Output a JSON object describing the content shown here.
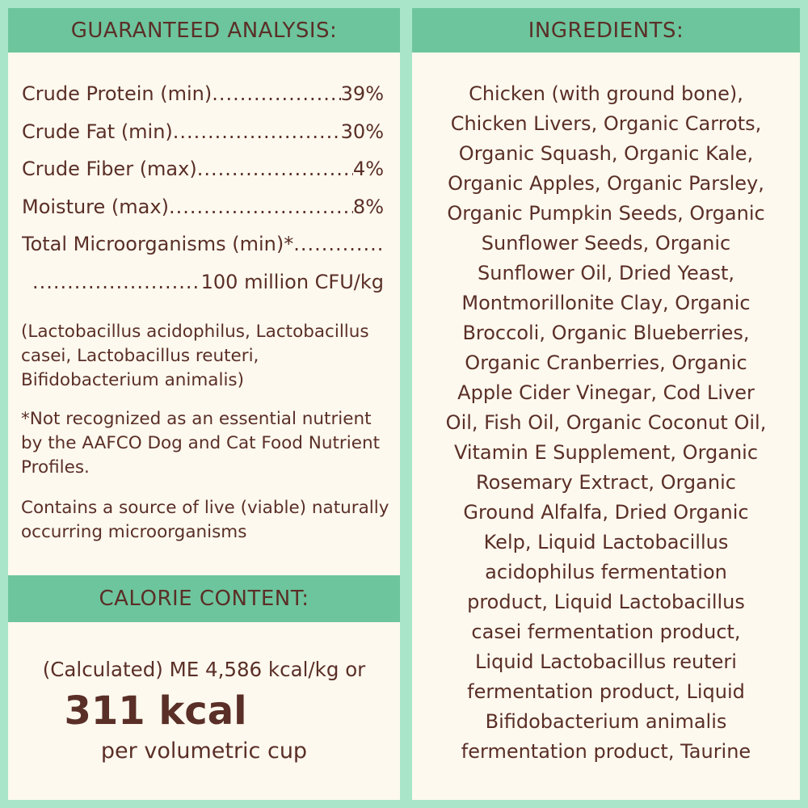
{
  "analysis": {
    "title": "GUARANTEED ANALYSIS:",
    "rows": [
      {
        "label": "Crude Protein (min)",
        "value": "39%"
      },
      {
        "label": "Crude Fat (min)",
        "value": "30%"
      },
      {
        "label": "Crude Fiber (max)",
        "value": "4%"
      },
      {
        "label": "Moisture (max)",
        "value": "8%"
      },
      {
        "label": "Total Microorganisms (min)*",
        "value": ""
      },
      {
        "label": "",
        "value": "100 million CFU/kg"
      }
    ],
    "strains": "(Lactobacillus acidophilus, Lactobacillus casei, Lactobacillus reuteri, Bifidobacterium animalis)",
    "footnote": "*Not recognized as an essential nutrient by the AAFCO Dog and Cat Food Nutrient Profiles.",
    "live_note": "Contains a source of live (viable) naturally occurring microorganisms"
  },
  "calorie": {
    "title": "CALORIE CONTENT:",
    "line1": "(Calculated) ME 4,586 kcal/kg or",
    "big": "311 kcal",
    "line3": "per volumetric cup"
  },
  "ingredients": {
    "title": "INGREDIENTS:",
    "lines": [
      "Chicken (with ground bone),",
      "Chicken Livers, Organic Carrots,",
      "Organic Squash, Organic Kale,",
      "Organic Apples, Organic Parsley,",
      "Organic Pumpkin Seeds, Organic",
      "Sunflower Seeds, Organic",
      "Sunflower Oil, Dried Yeast,",
      "Montmorillonite Clay, Organic",
      "Broccoli, Organic Blueberries,",
      "Organic Cranberries, Organic",
      "Apple Cider Vinegar, Cod Liver",
      "Oil, Fish Oil, Organic Coconut Oil,",
      "Vitamin E Supplement, Organic",
      "Rosemary Extract, Organic",
      "Ground Alfalfa, Dried Organic",
      "Kelp, Liquid Lactobacillus",
      "acidophilus fermentation",
      "product, Liquid Lactobacillus",
      "casei fermentation product,",
      "Liquid Lactobacillus reuteri",
      "fermentation product, Liquid",
      "Bifidobacterium animalis",
      "fermentation product, Taurine"
    ]
  },
  "colors": {
    "background": "#a9e6c9",
    "header": "#6dc59d",
    "panel": "#fdf9ef",
    "text": "#5a2f27"
  }
}
